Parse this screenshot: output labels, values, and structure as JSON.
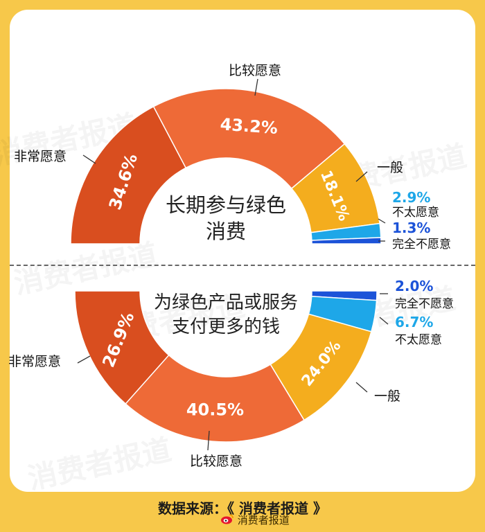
{
  "chart_data": [
    {
      "type": "pie",
      "title": "长期参与绿色消费",
      "categories": [
        "非常愿意",
        "比较愿意",
        "一般",
        "不太愿意",
        "完全不愿意"
      ],
      "values": [
        34.6,
        43.2,
        18.1,
        2.9,
        1.3
      ],
      "value_labels": [
        "34.6%",
        "43.2%",
        "18.1%",
        "2.9%",
        "1.3%"
      ],
      "colors": [
        "#d94e1f",
        "#ee6a37",
        "#f4ad1e",
        "#1ea7e8",
        "#1c53d8"
      ]
    },
    {
      "type": "pie",
      "title": "为绿色产品或服务支付更多的钱",
      "categories": [
        "完全不愿意",
        "不太愿意",
        "一般",
        "比较愿意",
        "非常愿意"
      ],
      "values": [
        2.0,
        6.7,
        24.0,
        40.5,
        26.9
      ],
      "value_labels": [
        "2.0%",
        "6.7%",
        "24.0%",
        "40.5%",
        "26.9%"
      ],
      "colors": [
        "#1c53d8",
        "#1ea7e8",
        "#f4ad1e",
        "#ee6a37",
        "#d94e1f"
      ]
    }
  ],
  "chart1": {
    "title_line1": "长期参与绿色",
    "title_line2": "消费"
  },
  "chart2": {
    "title_line1": "为绿色产品或服务",
    "title_line2": "支付更多的钱"
  },
  "watermark": "消费者报道",
  "source": "数据来源：《 消费者报道 》",
  "weibo_label": "消费者报道"
}
